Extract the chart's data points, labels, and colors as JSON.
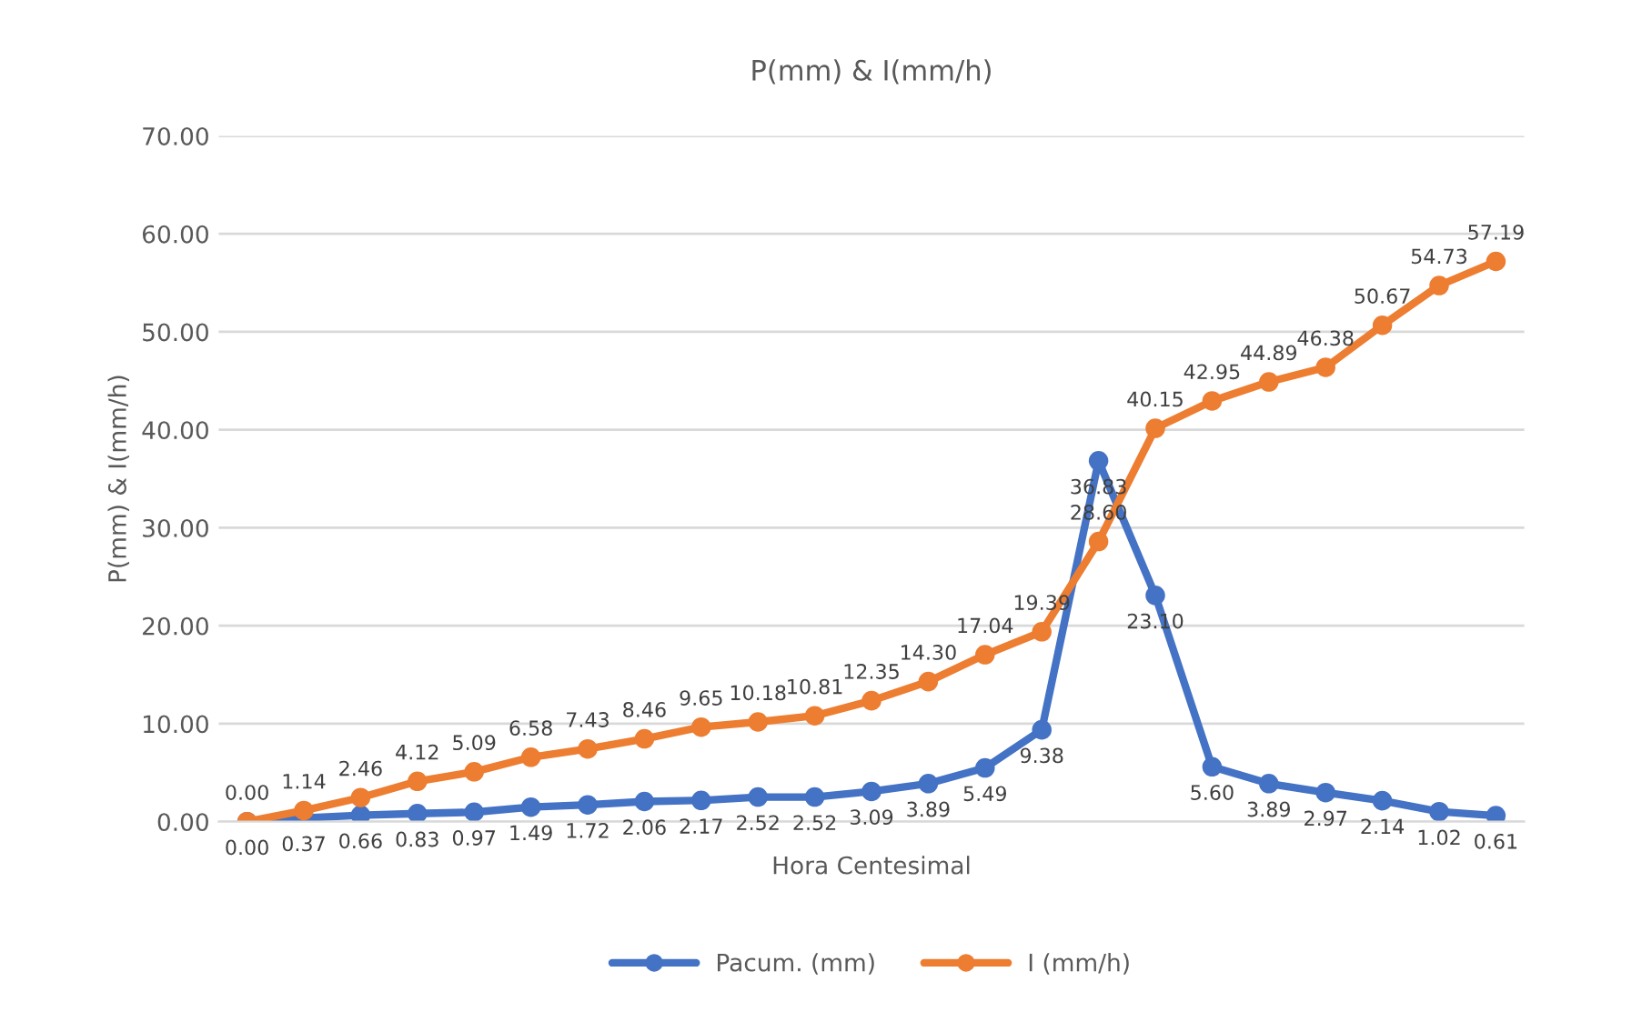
{
  "chart_data": {
    "type": "line",
    "title": "P(mm) & I(mm/h)",
    "xlabel": "Hora Centesimal",
    "ylabel": "P(mm) & I(mm/h)",
    "categories": [
      null,
      null,
      null,
      null,
      null,
      null,
      null,
      null,
      null,
      null,
      null,
      null,
      null,
      null,
      null,
      null,
      null,
      null,
      null,
      null,
      null,
      null,
      null
    ],
    "series": [
      {
        "name": "Pacum. (mm)",
        "color": "#4472c4",
        "values": [
          0.0,
          0.37,
          0.66,
          0.83,
          0.97,
          1.49,
          1.72,
          2.06,
          2.17,
          2.52,
          2.52,
          3.09,
          3.89,
          5.49,
          9.38,
          36.83,
          23.1,
          5.6,
          3.89,
          2.97,
          2.14,
          1.02,
          0.61
        ],
        "value_labels": [
          "0.00",
          "0.37",
          "0.66",
          "0.83",
          "0.97",
          "1.49",
          "1.72",
          "2.06",
          "2.17",
          "2.52",
          "2.52",
          "3.09",
          "3.89",
          "5.49",
          "9.38",
          "36.83",
          "23.10",
          "5.60",
          "3.89",
          "2.97",
          "2.14",
          "1.02",
          "0.61"
        ]
      },
      {
        "name": "I (mm/h)",
        "color": "#ed7d31",
        "values": [
          0.0,
          1.14,
          2.46,
          4.12,
          5.09,
          6.58,
          7.43,
          8.46,
          9.65,
          10.18,
          10.81,
          12.35,
          14.3,
          17.04,
          19.39,
          28.6,
          40.15,
          42.95,
          44.89,
          46.38,
          50.67,
          54.73,
          57.19
        ],
        "value_labels": [
          "0.00",
          "1.14",
          "2.46",
          "4.12",
          "5.09",
          "6.58",
          "7.43",
          "8.46",
          "9.65",
          "10.18",
          "10.81",
          "12.35",
          "14.30",
          "17.04",
          "19.39",
          "28.60",
          "40.15",
          "42.95",
          "44.89",
          "46.38",
          "50.67",
          "54.73",
          "57.19"
        ]
      }
    ],
    "ylim": [
      0,
      70
    ],
    "yticks": [
      {
        "value": 0,
        "label": "0.00"
      },
      {
        "value": 10,
        "label": "10.00"
      },
      {
        "value": 20,
        "label": "20.00"
      },
      {
        "value": 30,
        "label": "30.00"
      },
      {
        "value": 40,
        "label": "40.00"
      },
      {
        "value": 50,
        "label": "50.00"
      },
      {
        "value": 60,
        "label": "60.00"
      },
      {
        "value": 70,
        "label": "70.00"
      }
    ],
    "grid": "y",
    "legend": "bottom",
    "marker": "circle",
    "line_style": "solid",
    "data_labels": true
  }
}
